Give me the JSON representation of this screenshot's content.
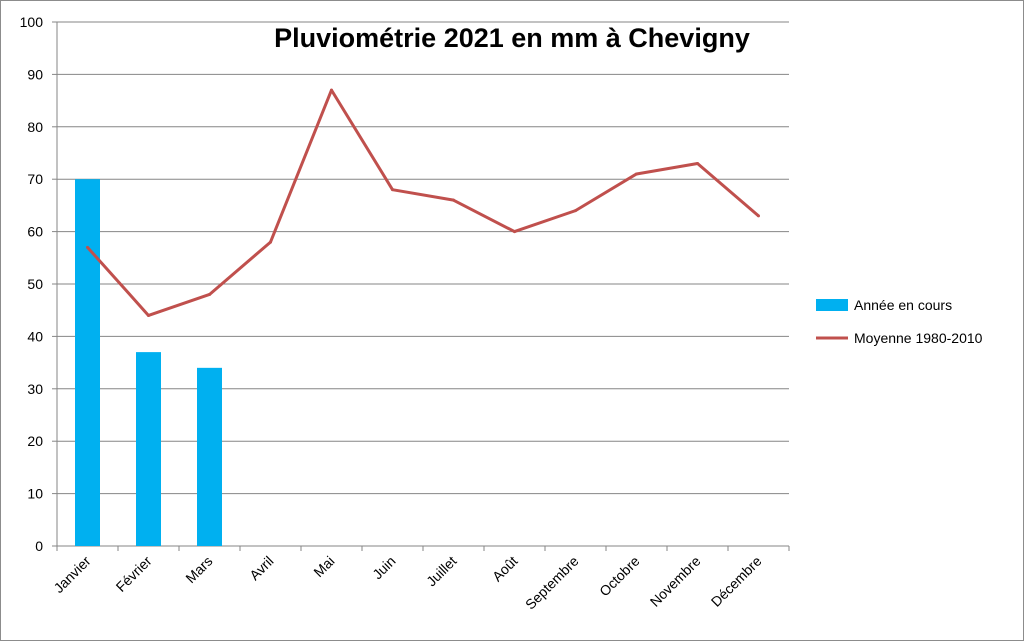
{
  "chart_data": {
    "type": "bar",
    "title": "Pluviométrie 2021 en mm à Chevigny",
    "categories": [
      "Janvier",
      "Février",
      "Mars",
      "Avril",
      "Mai",
      "Juin",
      "Juillet",
      "Août",
      "Septembre",
      "Octobre",
      "Novembre",
      "Décembre"
    ],
    "ylim": [
      0,
      100
    ],
    "yticks": [
      0,
      10,
      20,
      30,
      40,
      50,
      60,
      70,
      80,
      90,
      100
    ],
    "grid": true,
    "legend_position": "right",
    "series": [
      {
        "name": "Année en cours",
        "type": "bar",
        "color": "#00b0f0",
        "values": [
          70,
          37,
          34,
          null,
          null,
          null,
          null,
          null,
          null,
          null,
          null,
          null
        ]
      },
      {
        "name": "Moyenne 1980-2010",
        "type": "line",
        "color": "#c0504d",
        "values": [
          57,
          44,
          48,
          58,
          87,
          68,
          66,
          60,
          64,
          71,
          73,
          63
        ]
      }
    ]
  }
}
